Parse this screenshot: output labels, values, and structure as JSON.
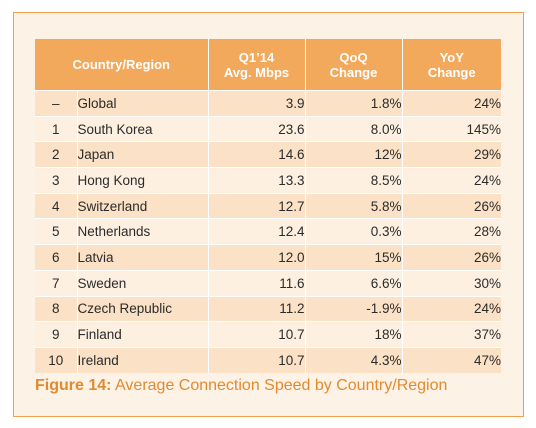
{
  "table": {
    "headers": {
      "country": "Country/Region",
      "mbps": [
        "Q1’14",
        "Avg. Mbps"
      ],
      "qoq": [
        "QoQ",
        "Change"
      ],
      "yoy": [
        "YoY",
        "Change"
      ]
    },
    "rows": [
      {
        "rank": "–",
        "country": "Global",
        "mbps": "3.9",
        "qoq": "1.8%",
        "yoy": "24%"
      },
      {
        "rank": "1",
        "country": "South Korea",
        "mbps": "23.6",
        "qoq": "8.0%",
        "yoy": "145%"
      },
      {
        "rank": "2",
        "country": "Japan",
        "mbps": "14.6",
        "qoq": "12%",
        "yoy": "29%"
      },
      {
        "rank": "3",
        "country": "Hong Kong",
        "mbps": "13.3",
        "qoq": "8.5%",
        "yoy": "24%"
      },
      {
        "rank": "4",
        "country": "Switzerland",
        "mbps": "12.7",
        "qoq": "5.8%",
        "yoy": "26%"
      },
      {
        "rank": "5",
        "country": "Netherlands",
        "mbps": "12.4",
        "qoq": "0.3%",
        "yoy": "28%"
      },
      {
        "rank": "6",
        "country": "Latvia",
        "mbps": "12.0",
        "qoq": "15%",
        "yoy": "26%"
      },
      {
        "rank": "7",
        "country": "Sweden",
        "mbps": "11.6",
        "qoq": "6.6%",
        "yoy": "30%"
      },
      {
        "rank": "8",
        "country": "Czech Republic",
        "mbps": "11.2",
        "qoq": "-1.9%",
        "yoy": "24%"
      },
      {
        "rank": "9",
        "country": "Finland",
        "mbps": "10.7",
        "qoq": "18%",
        "yoy": "37%"
      },
      {
        "rank": "10",
        "country": "Ireland",
        "mbps": "10.7",
        "qoq": "4.3%",
        "yoy": "47%"
      }
    ]
  },
  "caption": {
    "label": "Figure 14:",
    "text": " Average Connection Speed by Country/Region"
  },
  "colors": {
    "header_bg": "#f3a95c",
    "row_odd": "#fbe1c5",
    "row_even": "#fdf0e1",
    "panel_bg": "#fdf2e6",
    "panel_border": "#f0a04b",
    "caption": "#e48a2e"
  }
}
